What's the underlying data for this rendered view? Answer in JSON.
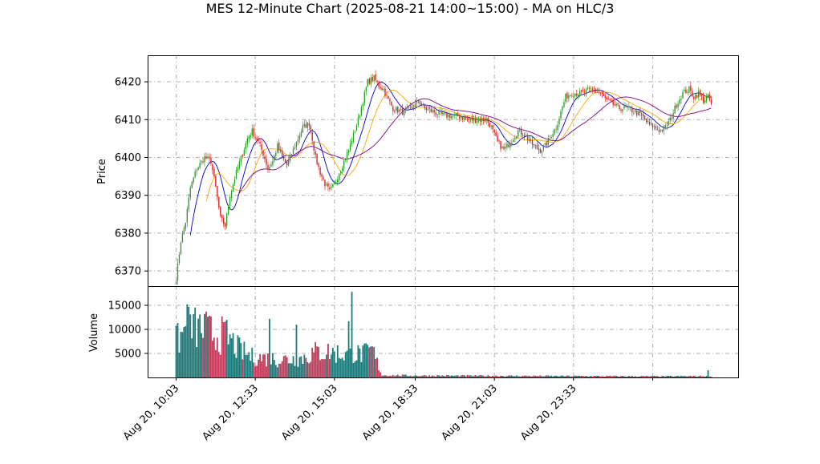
{
  "chart_data": {
    "type": "candlestick",
    "title": "MES 12-Minute Chart (2025-08-21 14:00~15:00) - MA on HLC/3",
    "price_panel": {
      "ylabel": "Price",
      "ylim": [
        6366,
        6427
      ],
      "yticks": [
        6370,
        6380,
        6390,
        6400,
        6410,
        6420
      ],
      "grid": true
    },
    "volume_panel": {
      "ylabel": "Volume",
      "ylim": [
        0,
        19000
      ],
      "yticks": [
        5000,
        10000,
        15000
      ],
      "grid": true
    },
    "x_tick_labels": [
      "Aug 20, 10:03",
      "Aug 20, 12:33",
      "Aug 20, 15:03",
      "Aug 20, 18:33",
      "Aug 20, 21:03",
      "Aug 20, 23:33"
    ],
    "colors": {
      "up": "#2ca02c",
      "down": "#d62728",
      "vol_up": "#1f7a7a",
      "vol_down": "#c23b5a",
      "ma_fast": "#0000cc",
      "ma_mid": "#ffa500",
      "ma_slow": "#800080",
      "grid": "#b0b0b0"
    },
    "price_path": [
      [
        0,
        6368
      ],
      [
        3,
        6378
      ],
      [
        6,
        6383
      ],
      [
        9,
        6392
      ],
      [
        13,
        6397
      ],
      [
        18,
        6400
      ],
      [
        22,
        6399
      ],
      [
        25,
        6392
      ],
      [
        28,
        6384
      ],
      [
        31,
        6382
      ],
      [
        34,
        6390
      ],
      [
        38,
        6396
      ],
      [
        42,
        6401
      ],
      [
        45,
        6405
      ],
      [
        48,
        6407
      ],
      [
        52,
        6404
      ],
      [
        55,
        6401
      ],
      [
        58,
        6397
      ],
      [
        61,
        6399
      ],
      [
        64,
        6403
      ],
      [
        67,
        6400
      ],
      [
        70,
        6398
      ],
      [
        73,
        6401
      ],
      [
        77,
        6405
      ],
      [
        80,
        6408
      ],
      [
        84,
        6409
      ],
      [
        86,
        6405
      ],
      [
        88,
        6400
      ],
      [
        91,
        6396
      ],
      [
        94,
        6393
      ],
      [
        97,
        6391
      ],
      [
        100,
        6393
      ],
      [
        103,
        6396
      ],
      [
        106,
        6399
      ],
      [
        109,
        6402
      ],
      [
        112,
        6406
      ],
      [
        115,
        6410
      ],
      [
        118,
        6415
      ],
      [
        121,
        6420
      ],
      [
        125,
        6421
      ],
      [
        128,
        6419
      ],
      [
        131,
        6418
      ],
      [
        133,
        6416
      ],
      [
        137,
        6413
      ],
      [
        143,
        6412
      ],
      [
        149,
        6413
      ],
      [
        153,
        6415
      ],
      [
        157,
        6413
      ],
      [
        163,
        6412
      ],
      [
        170,
        6411
      ],
      [
        178,
        6411
      ],
      [
        186,
        6410
      ],
      [
        192,
        6410
      ],
      [
        196,
        6410
      ],
      [
        199,
        6408
      ],
      [
        203,
        6404
      ],
      [
        207,
        6402
      ],
      [
        211,
        6404
      ],
      [
        216,
        6407
      ],
      [
        220,
        6406
      ],
      [
        226,
        6403
      ],
      [
        230,
        6402
      ],
      [
        233,
        6403
      ],
      [
        237,
        6406
      ],
      [
        240,
        6408
      ],
      [
        243,
        6412
      ],
      [
        246,
        6416
      ],
      [
        250,
        6417
      ],
      [
        256,
        6417
      ],
      [
        262,
        6418
      ],
      [
        268,
        6417
      ],
      [
        272,
        6415
      ],
      [
        276,
        6414
      ],
      [
        280,
        6413
      ],
      [
        285,
        6413
      ],
      [
        290,
        6412
      ],
      [
        294,
        6411
      ],
      [
        298,
        6409
      ],
      [
        302,
        6408
      ],
      [
        306,
        6407
      ],
      [
        309,
        6408
      ],
      [
        312,
        6410
      ],
      [
        316,
        6414
      ],
      [
        320,
        6417
      ],
      [
        324,
        6418
      ],
      [
        327,
        6416
      ],
      [
        330,
        6417
      ],
      [
        333,
        6415
      ],
      [
        336,
        6416
      ],
      [
        338,
        6414
      ]
    ],
    "volume_profile": [
      [
        0,
        7800
      ],
      [
        8,
        11000
      ],
      [
        16,
        10500
      ],
      [
        24,
        9500
      ],
      [
        32,
        9000
      ],
      [
        40,
        6000
      ],
      [
        48,
        4500
      ],
      [
        56,
        4200
      ],
      [
        64,
        4000
      ],
      [
        72,
        4000
      ],
      [
        80,
        4300
      ],
      [
        88,
        5500
      ],
      [
        96,
        5600
      ],
      [
        104,
        5200
      ],
      [
        112,
        5000
      ],
      [
        120,
        5200
      ],
      [
        124,
        6000
      ],
      [
        130,
        500
      ],
      [
        140,
        450
      ],
      [
        150,
        400
      ],
      [
        200,
        350
      ],
      [
        260,
        300
      ],
      [
        300,
        250
      ],
      [
        338,
        300
      ]
    ],
    "volume_spikes": [
      [
        7,
        15200
      ],
      [
        18,
        13200
      ],
      [
        59,
        12200
      ],
      [
        76,
        11000
      ],
      [
        109,
        11700
      ],
      [
        111,
        17800
      ],
      [
        336,
        1500
      ]
    ]
  }
}
